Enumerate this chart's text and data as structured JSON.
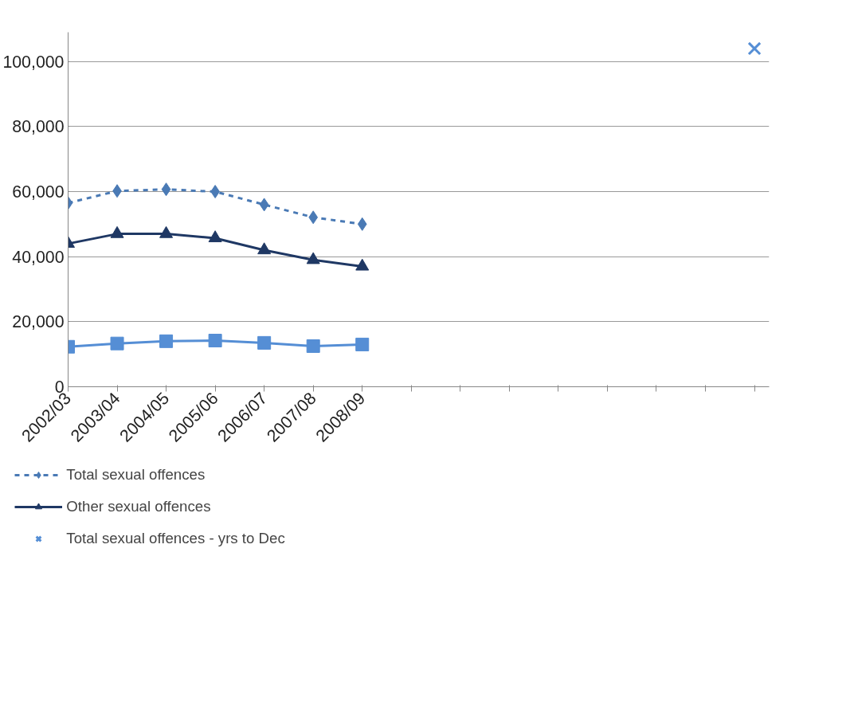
{
  "chart_data": {
    "type": "line",
    "categories": [
      "2002/03",
      "2003/04",
      "2004/05",
      "2005/06",
      "2006/07",
      "2007/08",
      "2008/09",
      null,
      null,
      null,
      null,
      null,
      null,
      null,
      null
    ],
    "ylim": [
      0,
      109000
    ],
    "yticks": [
      {
        "value": 0,
        "label": "0"
      },
      {
        "value": 20000,
        "label": "20,000"
      },
      {
        "value": 40000,
        "label": "40,000"
      },
      {
        "value": 60000,
        "label": "60,000"
      },
      {
        "value": 80000,
        "label": "80,000"
      },
      {
        "value": 100000,
        "label": "100,000"
      }
    ],
    "grid": "y",
    "legend": "bottom",
    "series": [
      {
        "name": "Total sexual offences",
        "color": "#4a7ab5",
        "marker": "diamond",
        "line_style": "dashed",
        "values": [
          56500,
          60200,
          60700,
          60000,
          56000,
          52100,
          50000,
          null,
          null,
          null,
          null,
          null,
          null,
          null,
          null
        ]
      },
      {
        "name": "Other sexual offences",
        "color": "#1f3864",
        "marker": "triangle",
        "line_style": "solid",
        "values": [
          44000,
          47000,
          47000,
          45700,
          42000,
          39000,
          37000,
          null,
          null,
          null,
          null,
          null,
          null,
          null,
          null
        ]
      },
      {
        "color": "#558ed5",
        "marker": "square",
        "line_style": "solid",
        "values": [
          12300,
          13300,
          14000,
          14200,
          13500,
          12500,
          13000,
          null,
          null,
          null,
          null,
          null,
          null,
          null,
          null
        ]
      },
      {
        "name": "Total sexual offences - yrs to Dec",
        "type": "scatter",
        "color": "#558ed5",
        "marker": "cross",
        "values": [
          null,
          null,
          null,
          null,
          null,
          null,
          null,
          null,
          null,
          null,
          null,
          null,
          null,
          null,
          104000
        ]
      }
    ]
  }
}
